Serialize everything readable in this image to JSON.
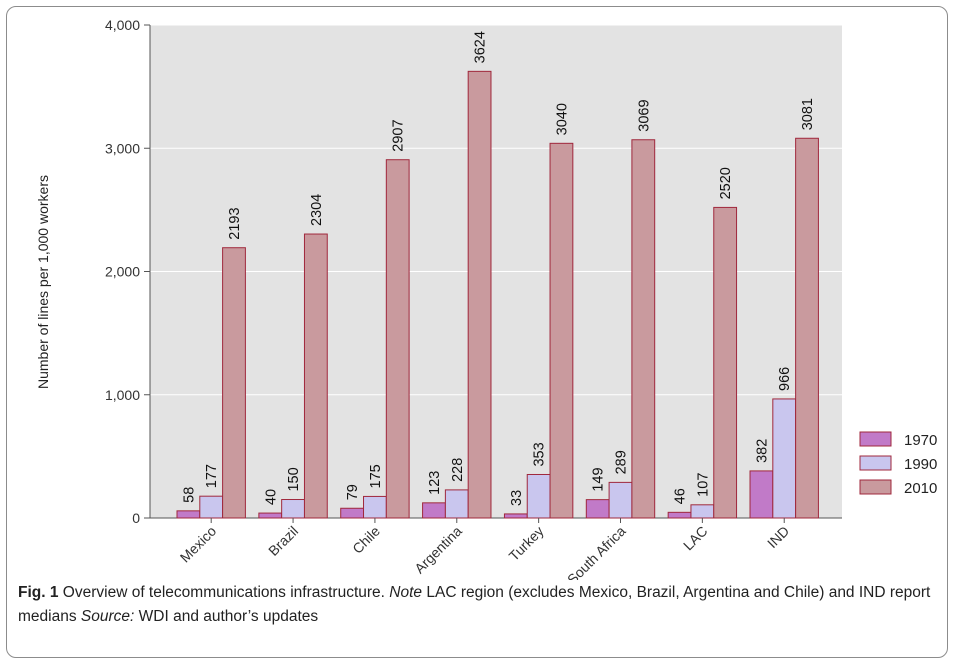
{
  "chart_data": {
    "type": "bar",
    "categories": [
      "Mexico",
      "Brazil",
      "Chile",
      "Argentina",
      "Turkey",
      "South Africa",
      "LAC",
      "IND"
    ],
    "series": [
      {
        "name": "1970",
        "values": [
          58,
          40,
          79,
          123,
          33,
          149,
          46,
          382
        ]
      },
      {
        "name": "1990",
        "values": [
          177,
          150,
          175,
          228,
          353,
          289,
          107,
          966
        ]
      },
      {
        "name": "2010",
        "values": [
          2193,
          2304,
          2907,
          3624,
          3040,
          3069,
          2520,
          3081
        ]
      }
    ],
    "ylabel": "Number of lines per 1,000 workers",
    "yticks": [
      "0",
      "1,000",
      "2,000",
      "3,000",
      "4,000"
    ],
    "ylim": [
      0,
      4000
    ],
    "grid": true,
    "legend_position": "right",
    "colors": {
      "1970": "#c17ac8",
      "1990": "#c9c6ee",
      "2010": "#c99a9e",
      "plot_bg": "#e3e3e3",
      "bar_stroke": "#a0283c"
    }
  },
  "caption": {
    "label": "Fig. 1",
    "text1": "Overview of telecommunications infrastructure.",
    "note_word": "Note",
    "text2": "LAC region (excludes Mexico, Brazil, Argentina and Chile) and IND report medians",
    "source_word": "Source:",
    "text3": "WDI and author’s updates"
  }
}
